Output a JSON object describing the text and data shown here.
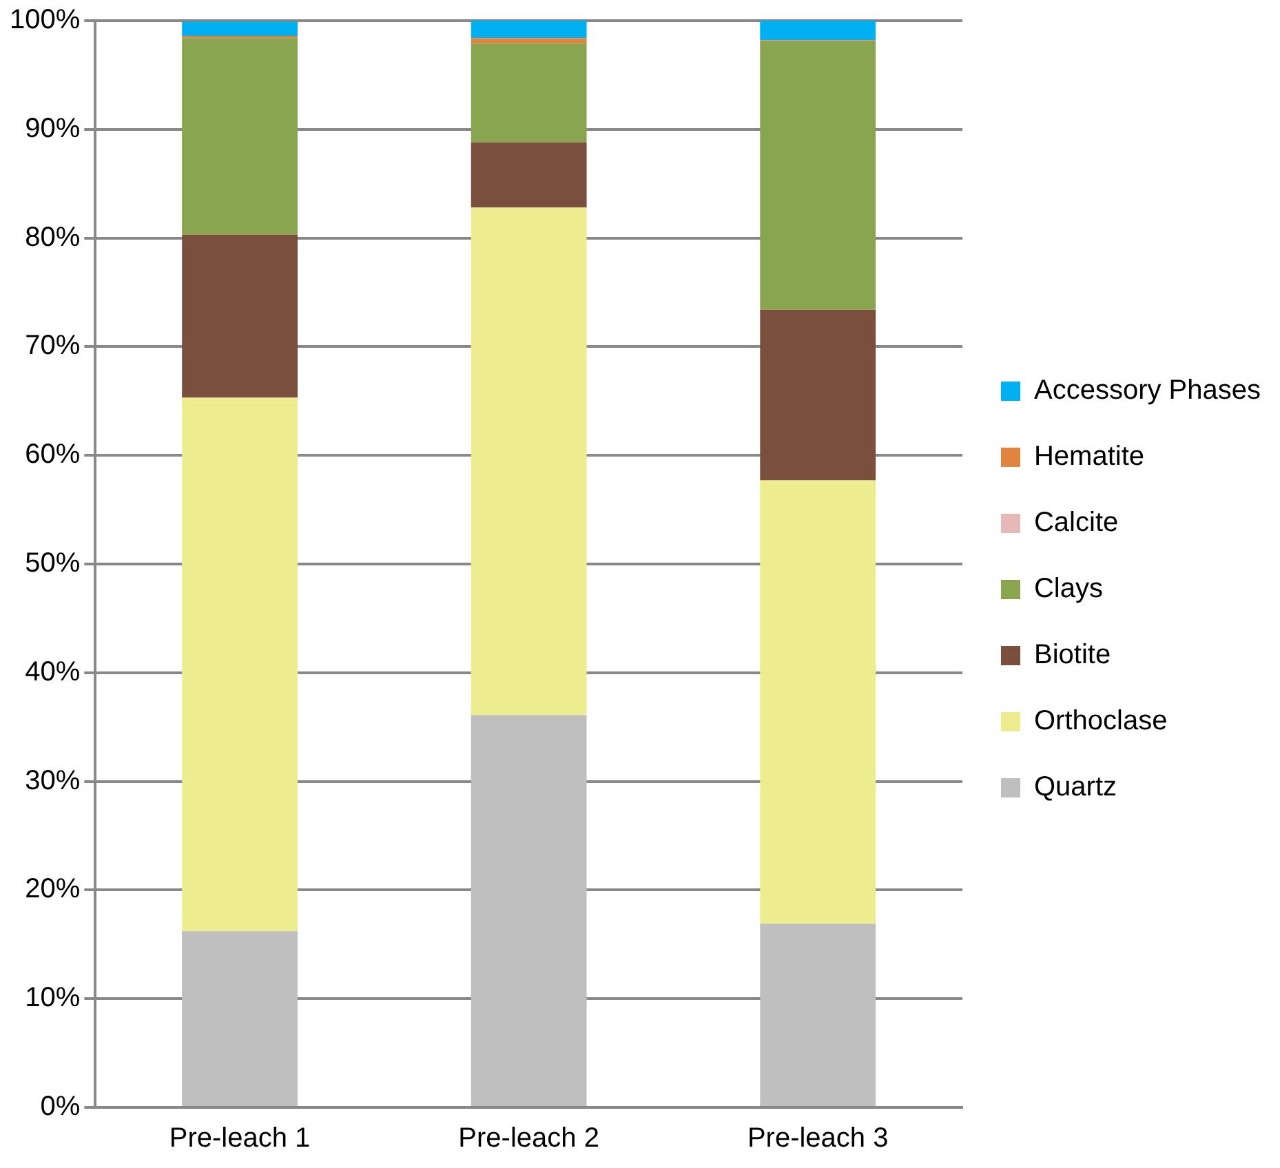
{
  "chart_data": {
    "type": "bar",
    "stacked": true,
    "categories": [
      "Pre-leach 1",
      "Pre-leach 2",
      "Pre-leach 3"
    ],
    "series": [
      {
        "name": "Quartz",
        "color": "#bfbfbf",
        "values": [
          16.2,
          36.1,
          16.9
        ]
      },
      {
        "name": "Orthoclase",
        "color": "#eded8f",
        "values": [
          49.1,
          46.7,
          40.8
        ]
      },
      {
        "name": "Biotite",
        "color": "#7b4f3e",
        "values": [
          15.0,
          6.0,
          15.7
        ]
      },
      {
        "name": "Clays",
        "color": "#8aa54f",
        "values": [
          18.1,
          9.1,
          24.7
        ]
      },
      {
        "name": "Calcite",
        "color": "#e6b9b8",
        "values": [
          null,
          null,
          null
        ]
      },
      {
        "name": "Hematite",
        "color": "#e0843f",
        "values": [
          0.2,
          0.5,
          0.1
        ]
      },
      {
        "name": "Accessory Phases",
        "color": "#00b0f0",
        "values": [
          1.3,
          1.6,
          1.8
        ]
      }
    ],
    "ylim": [
      0,
      100
    ],
    "yticks": [
      {
        "value": 0,
        "label": "0%"
      },
      {
        "value": 10,
        "label": "10%"
      },
      {
        "value": 20,
        "label": "20%"
      },
      {
        "value": 30,
        "label": "30%"
      },
      {
        "value": 40,
        "label": "40%"
      },
      {
        "value": 50,
        "label": "50%"
      },
      {
        "value": 60,
        "label": "60%"
      },
      {
        "value": 70,
        "label": "70%"
      },
      {
        "value": 80,
        "label": "80%"
      },
      {
        "value": 90,
        "label": "90%"
      },
      {
        "value": 100,
        "label": "100%"
      }
    ],
    "grid": "y",
    "legend": "right"
  }
}
